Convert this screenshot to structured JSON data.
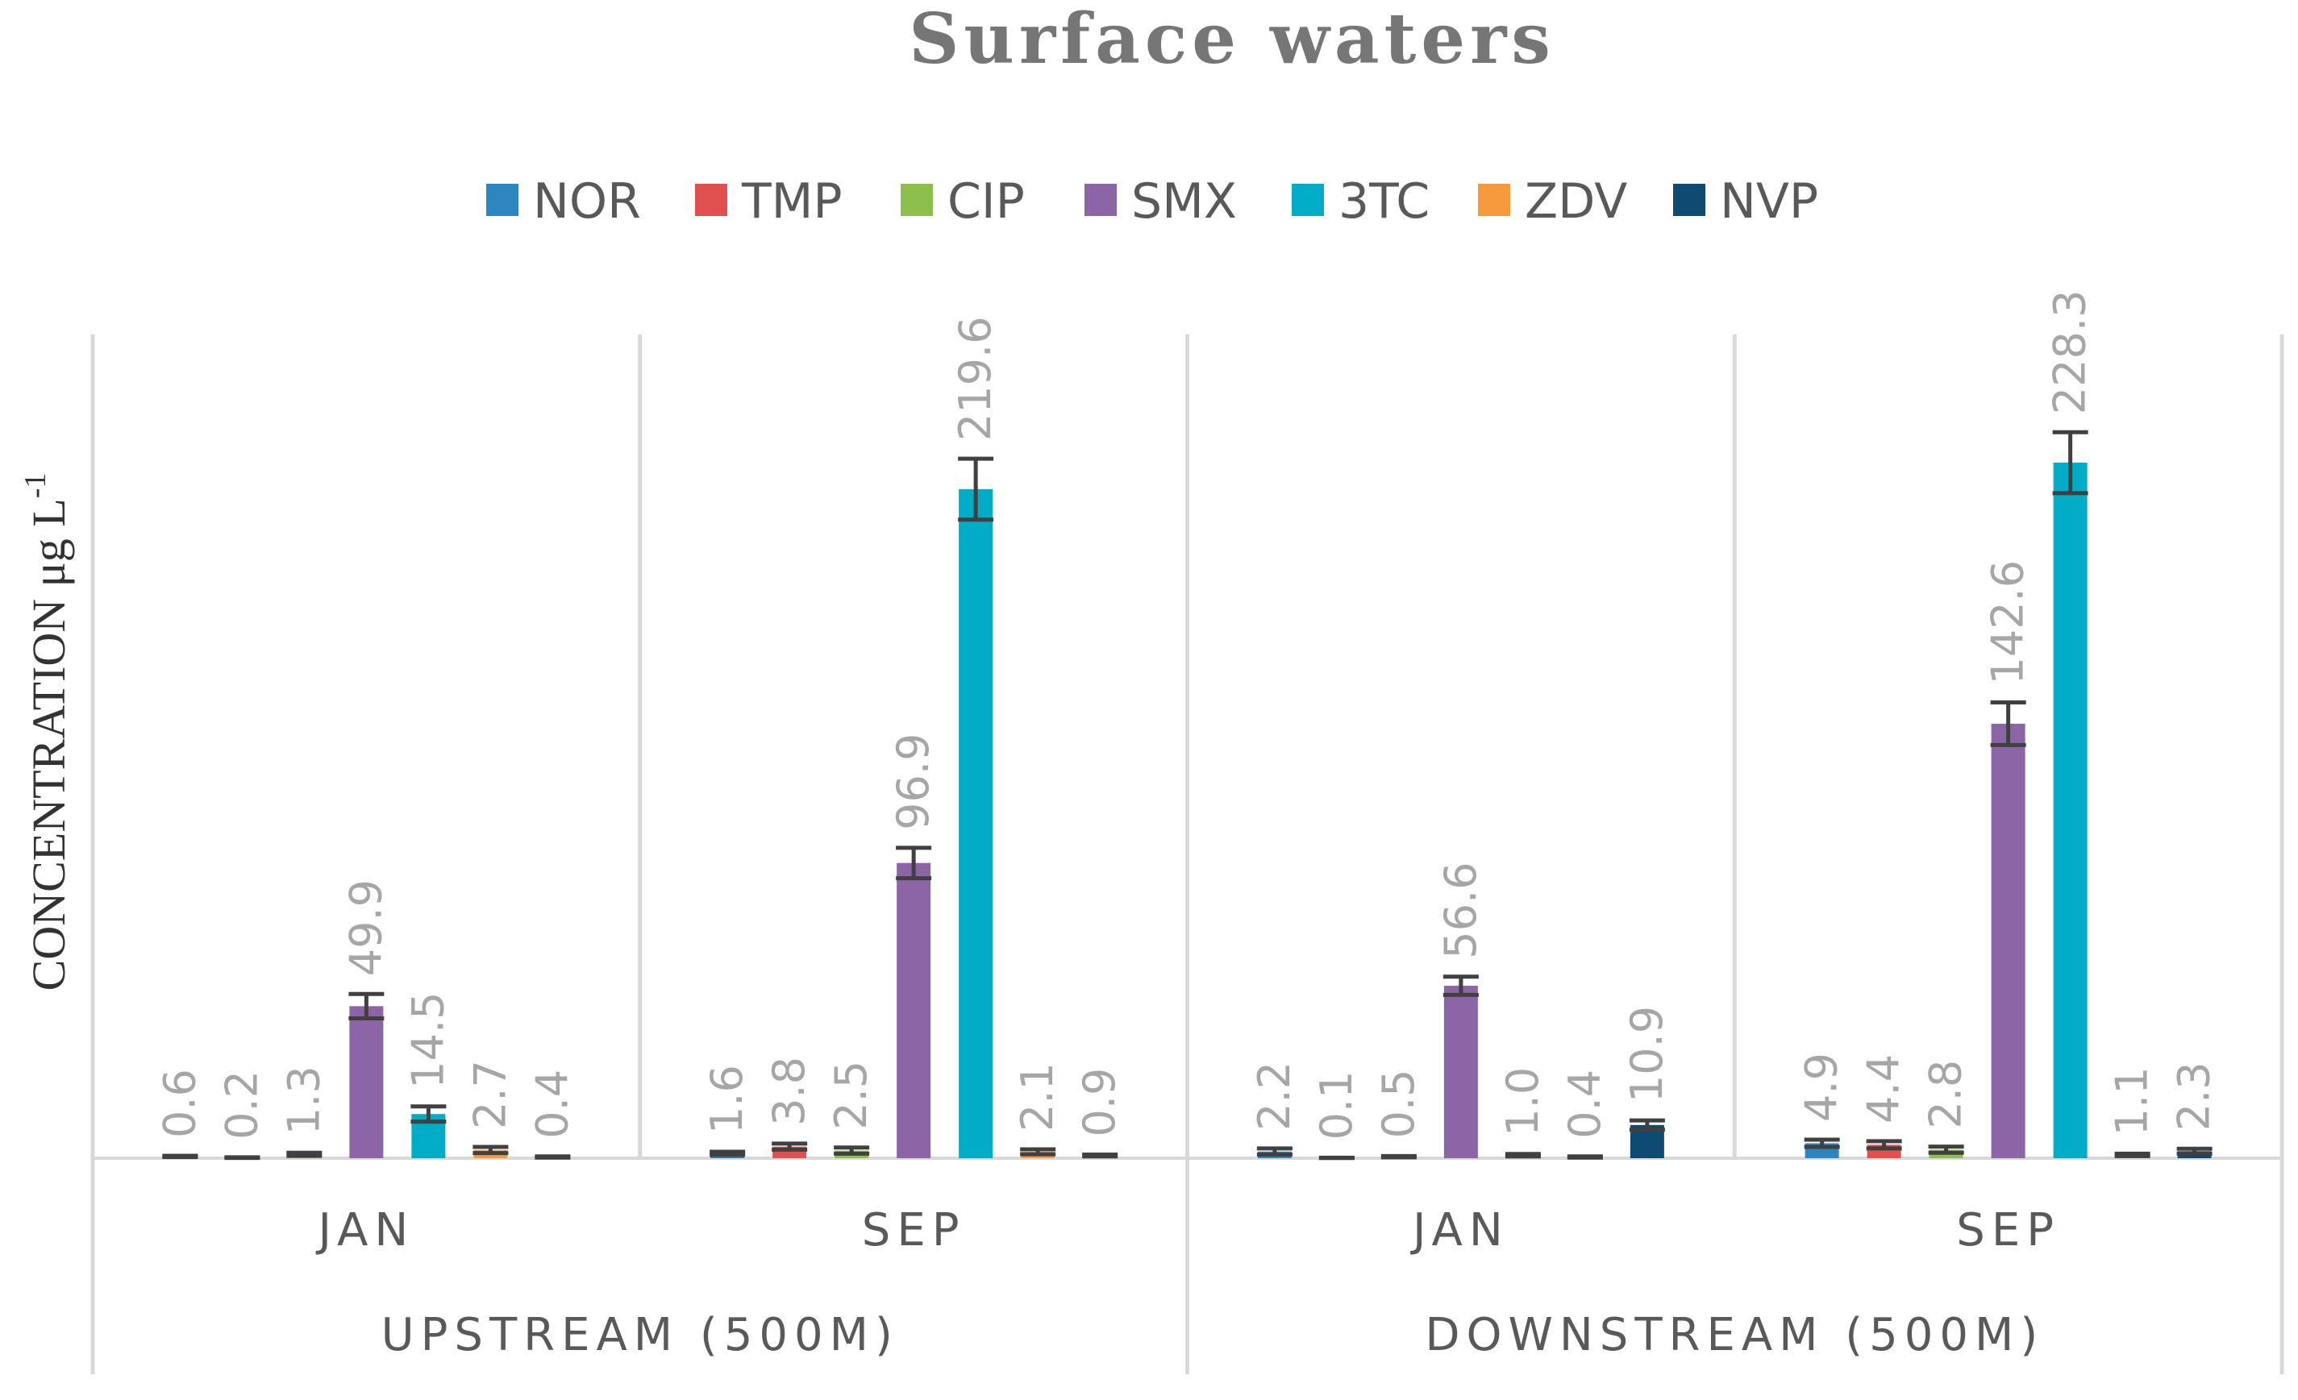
{
  "colors": {
    "NOR": "#2e86c1",
    "TMP": "#e0504e",
    "CIP": "#8cbf4c",
    "SMX": "#8c65a6",
    "3TC": "#00acc6",
    "ZDV": "#f7993d",
    "NVP": "#0e4a72",
    "error_bar": "#404040",
    "grid": "#d9d9d9"
  },
  "chart_data": {
    "type": "bar",
    "title": "Surface waters",
    "ylabel_main": "CONCENTRATION μg L",
    "ylabel_sup": "-1",
    "xlabel": "",
    "ylim": [
      0,
      250
    ],
    "legend_position": "top",
    "series_names": [
      "NOR",
      "TMP",
      "CIP",
      "SMX",
      "3TC",
      "ZDV",
      "NVP"
    ],
    "groups": [
      {
        "site": "UPSTREAM (500M)",
        "months": [
          {
            "month": "JAN",
            "values": [
              0.6,
              0.2,
              1.3,
              49.9,
              14.5,
              2.7,
              0.4
            ],
            "labels": [
              "0.6",
              "0.2",
              "1.3",
              "49.9",
              "14.5",
              "2.7",
              "0.4"
            ],
            "errors": [
              0.2,
              0.1,
              0.5,
              4,
              2.5,
              1,
              0.2
            ]
          },
          {
            "month": "SEP",
            "values": [
              1.6,
              3.8,
              2.5,
              96.9,
              219.6,
              2.1,
              0.9
            ],
            "labels": [
              "1.6",
              "3.8",
              "2.5",
              "96.9",
              "219.6",
              "2.1",
              "0.9"
            ],
            "errors": [
              0.5,
              1,
              1,
              5,
              10,
              0.8,
              0.3
            ]
          }
        ]
      },
      {
        "site": "DOWNSTREAM (500M)",
        "months": [
          {
            "month": "JAN",
            "values": [
              2.2,
              0.1,
              0.5,
              56.6,
              1.0,
              0.4,
              10.9
            ],
            "labels": [
              "2.2",
              "0.1",
              "0.5",
              "56.6",
              "1.0",
              "0.4",
              "10.9"
            ],
            "errors": [
              1,
              0.05,
              0.2,
              3,
              0.4,
              0.2,
              1.5
            ]
          },
          {
            "month": "SEP",
            "values": [
              4.9,
              4.4,
              2.8,
              142.6,
              228.3,
              1.1,
              2.3
            ],
            "labels": [
              "4.9",
              "4.4",
              "2.8",
              "142.6",
              "228.3",
              "1.1",
              "2.3"
            ],
            "errors": [
              1.2,
              1.2,
              1,
              7,
              10,
              0.4,
              0.8
            ]
          }
        ]
      }
    ]
  }
}
